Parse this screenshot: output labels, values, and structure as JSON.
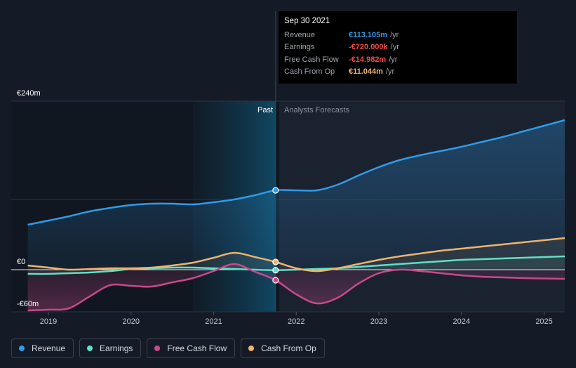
{
  "tooltip": {
    "date": "Sep 30 2021",
    "rows": [
      {
        "label": "Revenue",
        "value": "€113.105m",
        "unit": "/yr",
        "color": "#2f9bea"
      },
      {
        "label": "Earnings",
        "value": "-€720.000k",
        "unit": "/yr",
        "color": "#f04a4a"
      },
      {
        "label": "Free Cash Flow",
        "value": "-€14.982m",
        "unit": "/yr",
        "color": "#f04a4a"
      },
      {
        "label": "Cash From Op",
        "value": "€11.044m",
        "unit": "/yr",
        "color": "#f0b36b"
      }
    ]
  },
  "legend": [
    {
      "label": "Revenue",
      "color": "#2f9bea"
    },
    {
      "label": "Earnings",
      "color": "#5fe0c8"
    },
    {
      "label": "Free Cash Flow",
      "color": "#c8498b"
    },
    {
      "label": "Cash From Op",
      "color": "#f0b36b"
    }
  ],
  "chart_data": {
    "type": "line",
    "title": "",
    "xlabel": "",
    "ylabel": "",
    "ylim": [
      -60,
      240
    ],
    "xlim": [
      2018.55,
      2025.25
    ],
    "y_tick_labels": [
      {
        "value": 240,
        "label": "€240m"
      },
      {
        "value": 0,
        "label": "€0"
      },
      {
        "value": -60,
        "label": "-€60m"
      }
    ],
    "x_ticks": [
      2019,
      2020,
      2021,
      2022,
      2023,
      2024,
      2025
    ],
    "x_tick_labels": [
      "2019",
      "2020",
      "2021",
      "2022",
      "2023",
      "2024",
      "2025"
    ],
    "past_label": "Past",
    "forecast_label": "Analysts Forecasts",
    "divider_x": 2021.75,
    "highlight_start": 2020.75,
    "series": [
      {
        "name": "Revenue",
        "color": "#2f9bea",
        "x": [
          2018.75,
          2019.0,
          2019.25,
          2019.5,
          2019.75,
          2020.0,
          2020.25,
          2020.5,
          2020.75,
          2021.0,
          2021.25,
          2021.5,
          2021.75,
          2022.0,
          2022.25,
          2022.5,
          2022.75,
          2023.0,
          2023.25,
          2023.5,
          2023.75,
          2024.0,
          2024.25,
          2024.5,
          2024.75,
          2025.0,
          2025.25
        ],
        "values": [
          64,
          70,
          76,
          83,
          88,
          92,
          94,
          94,
          93,
          96,
          100,
          106,
          113,
          113,
          113,
          121,
          134,
          146,
          156,
          163,
          169,
          175,
          182,
          189,
          197,
          205,
          213
        ]
      },
      {
        "name": "Earnings",
        "color": "#5fe0c8",
        "x": [
          2018.75,
          2019.0,
          2019.25,
          2019.5,
          2019.75,
          2020.0,
          2020.25,
          2020.5,
          2020.75,
          2021.0,
          2021.25,
          2021.5,
          2021.75,
          2022.0,
          2022.25,
          2022.5,
          2022.75,
          2023.0,
          2023.25,
          2023.5,
          2023.75,
          2024.0,
          2024.25,
          2024.5,
          2024.75,
          2025.0,
          2025.25
        ],
        "values": [
          -6,
          -6,
          -5,
          -4,
          -2,
          1,
          2,
          3,
          3,
          2,
          1,
          0,
          -0.72,
          0,
          1,
          2,
          4,
          6,
          8,
          10,
          12,
          14,
          15,
          16,
          17,
          18,
          19
        ]
      },
      {
        "name": "Free Cash Flow",
        "color": "#c8498b",
        "x": [
          2018.75,
          2019.0,
          2019.25,
          2019.5,
          2019.75,
          2020.0,
          2020.25,
          2020.5,
          2020.75,
          2021.0,
          2021.25,
          2021.5,
          2021.75,
          2022.0,
          2022.25,
          2022.5,
          2022.75,
          2023.0,
          2023.25,
          2023.5,
          2023.75,
          2024.0,
          2024.25,
          2024.5,
          2024.75,
          2025.0,
          2025.25
        ],
        "values": [
          -58,
          -57,
          -55,
          -38,
          -22,
          -23,
          -24,
          -18,
          -12,
          -2,
          8,
          -3,
          -15,
          -35,
          -48,
          -40,
          -20,
          -5,
          0,
          -2,
          -5,
          -8,
          -10,
          -11,
          -12,
          -12.5,
          -13
        ]
      },
      {
        "name": "Cash From Op",
        "color": "#f0b36b",
        "x": [
          2018.75,
          2019.0,
          2019.25,
          2019.5,
          2019.75,
          2020.0,
          2020.25,
          2020.5,
          2020.75,
          2021.0,
          2021.25,
          2021.5,
          2021.75,
          2022.0,
          2022.25,
          2022.5,
          2022.75,
          2023.0,
          2023.25,
          2023.5,
          2023.75,
          2024.0,
          2024.25,
          2024.5,
          2024.75,
          2025.0,
          2025.25
        ],
        "values": [
          6,
          3,
          0,
          1,
          2,
          2,
          3,
          6,
          10,
          17,
          24,
          18,
          11,
          2,
          -2,
          2,
          8,
          14,
          19,
          23,
          27,
          30,
          33,
          36,
          39,
          42,
          45
        ]
      }
    ]
  }
}
